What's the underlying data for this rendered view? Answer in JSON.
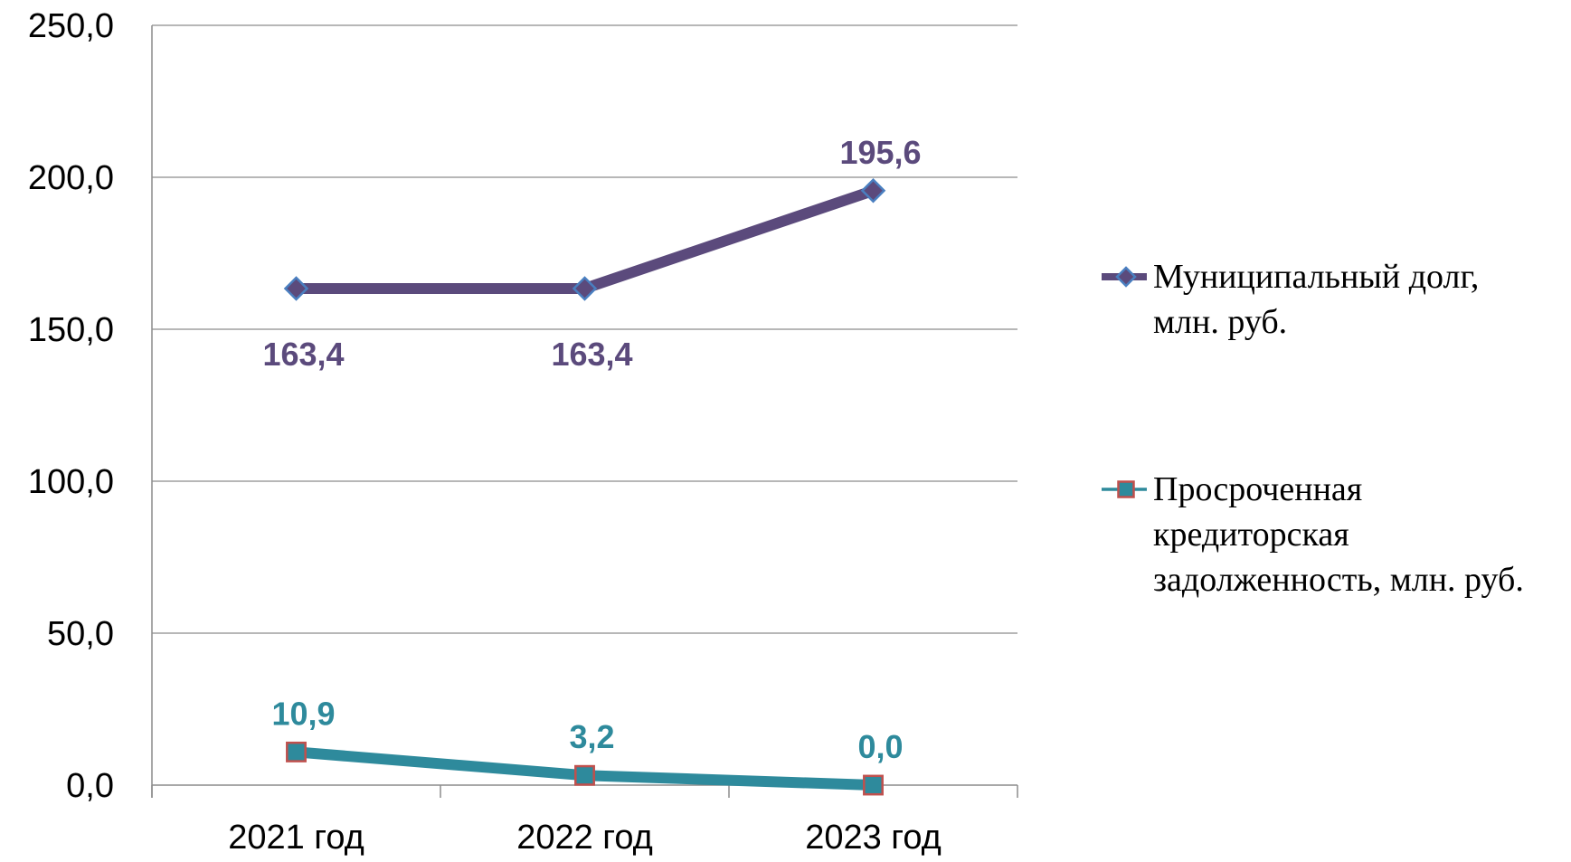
{
  "chart_data": {
    "type": "line",
    "categories": [
      "2021 год",
      "2022 год",
      "2023 год"
    ],
    "ylim": [
      0,
      250
    ],
    "yticks": [
      {
        "value": 0,
        "label": "0,0"
      },
      {
        "value": 50,
        "label": "50,0"
      },
      {
        "value": 100,
        "label": "100,0"
      },
      {
        "value": 150,
        "label": "150,0"
      },
      {
        "value": 200,
        "label": "200,0"
      },
      {
        "value": 250,
        "label": "250,0"
      }
    ],
    "grid": true,
    "legend_position": "right",
    "series": [
      {
        "name_lines": [
          "Муниципальный долг,",
          "млн. руб."
        ],
        "values": [
          163.4,
          163.4,
          195.6
        ],
        "labels": [
          "163,4",
          "163,4",
          "195,6"
        ],
        "label_position": [
          "below",
          "below",
          "above"
        ],
        "marker": "diamond",
        "color": "#5b4a7c",
        "marker_color": "#5b4a7c",
        "marker_edge": "#4a7fc0"
      },
      {
        "name_lines": [
          "Просроченная",
          "кредиторская",
          "задолженность, млн. руб."
        ],
        "values": [
          10.9,
          3.2,
          0.0
        ],
        "labels": [
          "10,9",
          "3,2",
          "0,0"
        ],
        "label_position": [
          "above",
          "above",
          "above"
        ],
        "marker": "square",
        "color": "#2e8a9c",
        "marker_color": "#2e8a9c",
        "marker_edge": "#c0504d"
      }
    ]
  }
}
